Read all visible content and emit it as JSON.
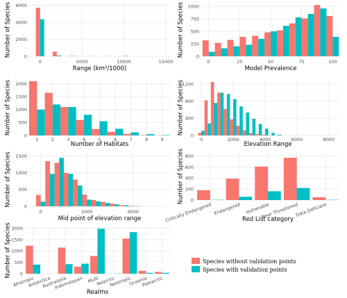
{
  "colors": {
    "without": "#F8766D",
    "with": "#00BFC4"
  },
  "legend": [
    {
      "label": "Species without validation points",
      "color": "#F8766D"
    },
    {
      "label": "Species with validation points",
      "color": "#00BFC4"
    }
  ],
  "chart_data": [
    {
      "id": "range",
      "type": "bar",
      "xlabel": "Range (km²/1000)",
      "ylabel": "Number of Species",
      "xscale": "linear",
      "xlim": [
        -1300,
        15500
      ],
      "ylim": [
        0,
        6200
      ],
      "xticks": [
        0,
        5000,
        10000,
        15000
      ],
      "xticklabels": [
        "0",
        "5000",
        "10000",
        "15000"
      ],
      "yticks": [
        0,
        2000,
        4000,
        6000
      ],
      "yticklabels": [
        "0",
        "2000",
        "4000",
        "6000"
      ],
      "bin_width": 1000,
      "x": [
        0,
        2000,
        4000,
        6000,
        8000,
        10000,
        12000,
        14000
      ],
      "series": [
        {
          "key": "without",
          "values": [
            5700,
            550,
            40,
            20,
            5,
            3,
            2,
            1
          ]
        },
        {
          "key": "with",
          "values": [
            4350,
            90,
            20,
            10,
            15,
            40,
            5,
            2
          ]
        }
      ]
    },
    {
      "id": "prevalence",
      "type": "bar",
      "xlabel": "Model Prevalence",
      "ylabel": "Number of Species",
      "xscale": "linear",
      "xlim": [
        -6,
        106
      ],
      "ylim": [
        0,
        1060
      ],
      "xticks": [
        0,
        25,
        50,
        75,
        100
      ],
      "xticklabels": [
        "0",
        "25",
        "50",
        "75",
        "100"
      ],
      "yticks": [
        0,
        250,
        500,
        750,
        1000
      ],
      "yticklabels": [
        "0",
        "250",
        "500",
        "750",
        "1000"
      ],
      "bin_width": 10,
      "x": [
        0,
        10,
        20,
        30,
        40,
        50,
        60,
        70,
        80,
        90,
        100
      ],
      "series": [
        {
          "key": "without",
          "values": [
            320,
            270,
            330,
            390,
            410,
            480,
            520,
            660,
            760,
            1030,
            810
          ]
        },
        {
          "key": "with",
          "values": [
            90,
            160,
            200,
            230,
            350,
            500,
            610,
            780,
            850,
            960,
            390
          ]
        }
      ]
    },
    {
      "id": "habitats",
      "type": "bar",
      "xlabel": "Number of Habitats",
      "ylabel": "Number of Species",
      "xscale": "linear",
      "xlim": [
        0.5,
        9.5
      ],
      "ylim": [
        0,
        2150
      ],
      "xticks": [
        1,
        2,
        3,
        4,
        5,
        6,
        7,
        8,
        9
      ],
      "xticklabels": [
        "1",
        "2",
        "3",
        "4",
        "5",
        "6",
        "7",
        "8",
        "9"
      ],
      "yticks": [
        0,
        500,
        1000,
        1500,
        2000
      ],
      "yticklabels": [
        "0",
        "500",
        "1000",
        "1500",
        "2000"
      ],
      "bin_width": 1,
      "x": [
        1,
        2,
        3,
        4,
        5,
        6,
        7,
        8,
        9
      ],
      "series": [
        {
          "key": "without",
          "values": [
            2100,
            1650,
            1100,
            600,
            250,
            140,
            60,
            15,
            5
          ]
        },
        {
          "key": "with",
          "values": [
            1000,
            1200,
            1100,
            800,
            550,
            260,
            120,
            50,
            15
          ]
        }
      ]
    },
    {
      "id": "elevation_range",
      "type": "bar",
      "xlabel": "Elevation Range",
      "ylabel": "Number of Species",
      "xscale": "linear",
      "xlim": [
        -350,
        8700
      ],
      "ylim": [
        0,
        1300
      ],
      "xticks": [
        0,
        2000,
        4000,
        6000,
        8000
      ],
      "xticklabels": [
        "0",
        "2000",
        "4000",
        "6000",
        "8000"
      ],
      "yticks": [
        0,
        400,
        800,
        1200
      ],
      "yticklabels": [
        "0",
        "400",
        "800",
        "1200"
      ],
      "bin_width": 400,
      "x": [
        0,
        400,
        800,
        1200,
        1600,
        2000,
        2400,
        2800,
        3200,
        3600,
        4000,
        4400,
        4800
      ],
      "series": [
        {
          "key": "without",
          "values": [
            60,
            820,
            1250,
            1000,
            620,
            380,
            230,
            120,
            60,
            30,
            15,
            5,
            2
          ]
        },
        {
          "key": "with",
          "values": [
            110,
            280,
            760,
            1000,
            970,
            850,
            680,
            540,
            390,
            270,
            160,
            60,
            20
          ]
        }
      ]
    },
    {
      "id": "mid_elevation",
      "type": "bar",
      "xlabel": "Mid point of elevation range",
      "ylabel": "Number of Species",
      "xscale": "linear",
      "xlim": [
        -500,
        5600
      ],
      "ylim": [
        0,
        1600
      ],
      "xticks": [
        0,
        2000,
        4000
      ],
      "xticklabels": [
        "0",
        "2000",
        "4000"
      ],
      "yticks": [
        0,
        500,
        1000,
        1500
      ],
      "yticklabels": [
        "0",
        "500",
        "1000",
        "1500"
      ],
      "bin_width": 400,
      "x": [
        0,
        400,
        800,
        1200,
        1600,
        2000,
        2400,
        2800,
        3200,
        3600,
        4000,
        4400
      ],
      "series": [
        {
          "key": "without",
          "values": [
            340,
            1350,
            1300,
            1000,
            800,
            350,
            190,
            130,
            80,
            30,
            15,
            5
          ]
        },
        {
          "key": "with",
          "values": [
            140,
            970,
            1450,
            970,
            620,
            200,
            150,
            100,
            60,
            30,
            10,
            3
          ]
        }
      ]
    },
    {
      "id": "red_list",
      "type": "bar",
      "xlabel": "Red List category",
      "ylabel": "Number of Species",
      "xscale": "categorical",
      "ylim": [
        0,
        860
      ],
      "categories": [
        "Critically Endangered",
        "Endangered",
        "Vulnerable",
        "Near Threatened",
        "Data Deficient"
      ],
      "yticks": [
        0,
        200,
        400,
        600,
        800
      ],
      "yticklabels": [
        "0",
        "200",
        "400",
        "600",
        "800"
      ],
      "series": [
        {
          "key": "without",
          "values": [
            180,
            390,
            610,
            770,
            50
          ]
        },
        {
          "key": "with",
          "values": [
            5,
            60,
            160,
            220,
            5
          ]
        }
      ]
    },
    {
      "id": "realms",
      "type": "bar",
      "xlabel": "Realms",
      "ylabel": "Number of Species",
      "xscale": "categorical",
      "ylim": [
        0,
        2050
      ],
      "categories": [
        "Afrotropic",
        "Antarctica",
        "Australasia",
        "Indomalayan",
        "Multi",
        "Nearctic",
        "Neotropic",
        "Oceania",
        "Palearctic"
      ],
      "yticks": [
        0,
        500,
        1000,
        1500,
        2000
      ],
      "yticklabels": [
        "0",
        "500",
        "1000",
        "1500",
        "2000"
      ],
      "series": [
        {
          "key": "without",
          "values": [
            1230,
            0,
            1150,
            310,
            780,
            0,
            1550,
            130,
            80
          ]
        },
        {
          "key": "with",
          "values": [
            400,
            0,
            420,
            440,
            1980,
            10,
            1830,
            40,
            40
          ]
        }
      ]
    }
  ]
}
